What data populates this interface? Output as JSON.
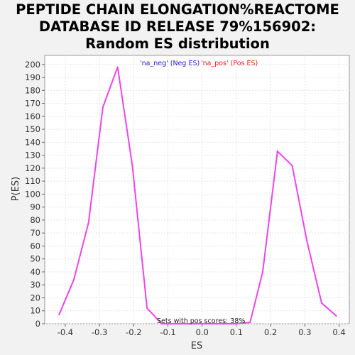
{
  "chart_data": {
    "type": "line",
    "title_lines": [
      "PEPTIDE CHAIN ELONGATION%REACTOME",
      "DATABASE ID RELEASE 79%156902:",
      "Random ES distribution"
    ],
    "xlabel": "ES",
    "ylabel": "P(ES)",
    "xlim": [
      -0.46,
      0.43
    ],
    "ylim": [
      0,
      207
    ],
    "x_ticks": [
      -0.4,
      -0.3,
      -0.2,
      -0.1,
      0.0,
      0.1,
      0.2,
      0.3,
      0.4
    ],
    "x_tick_labels": [
      "-0.4",
      "-0.3",
      "-0.2",
      "-0.1",
      "0.0",
      "0.1",
      "0.2",
      "0.3",
      "0.4"
    ],
    "y_ticks": [
      0,
      10,
      20,
      30,
      40,
      50,
      60,
      70,
      80,
      90,
      100,
      110,
      120,
      130,
      140,
      150,
      160,
      170,
      180,
      190,
      200
    ],
    "grid": true,
    "legend_position": "top-center",
    "legend": [
      {
        "label": "'na_neg' (Neg ES)",
        "color": "#2222cc"
      },
      {
        "label": "'na_pos' (Pos ES)",
        "color": "#dd2222"
      }
    ],
    "series": [
      {
        "color": "#ee44ee",
        "x": [
          -0.418,
          -0.375,
          -0.332,
          -0.29,
          -0.247,
          -0.204,
          -0.161,
          -0.118,
          -0.075,
          -0.032,
          0.011,
          0.054,
          0.097,
          0.14,
          0.177,
          0.22,
          0.263,
          0.306,
          0.349,
          0.392
        ],
        "y": [
          7,
          34,
          78,
          167,
          198,
          122,
          12,
          0,
          0,
          0,
          0,
          0,
          0,
          1,
          40,
          133,
          122,
          64,
          16,
          6
        ]
      }
    ],
    "annotation": "Sets with pos scores: 38%"
  }
}
